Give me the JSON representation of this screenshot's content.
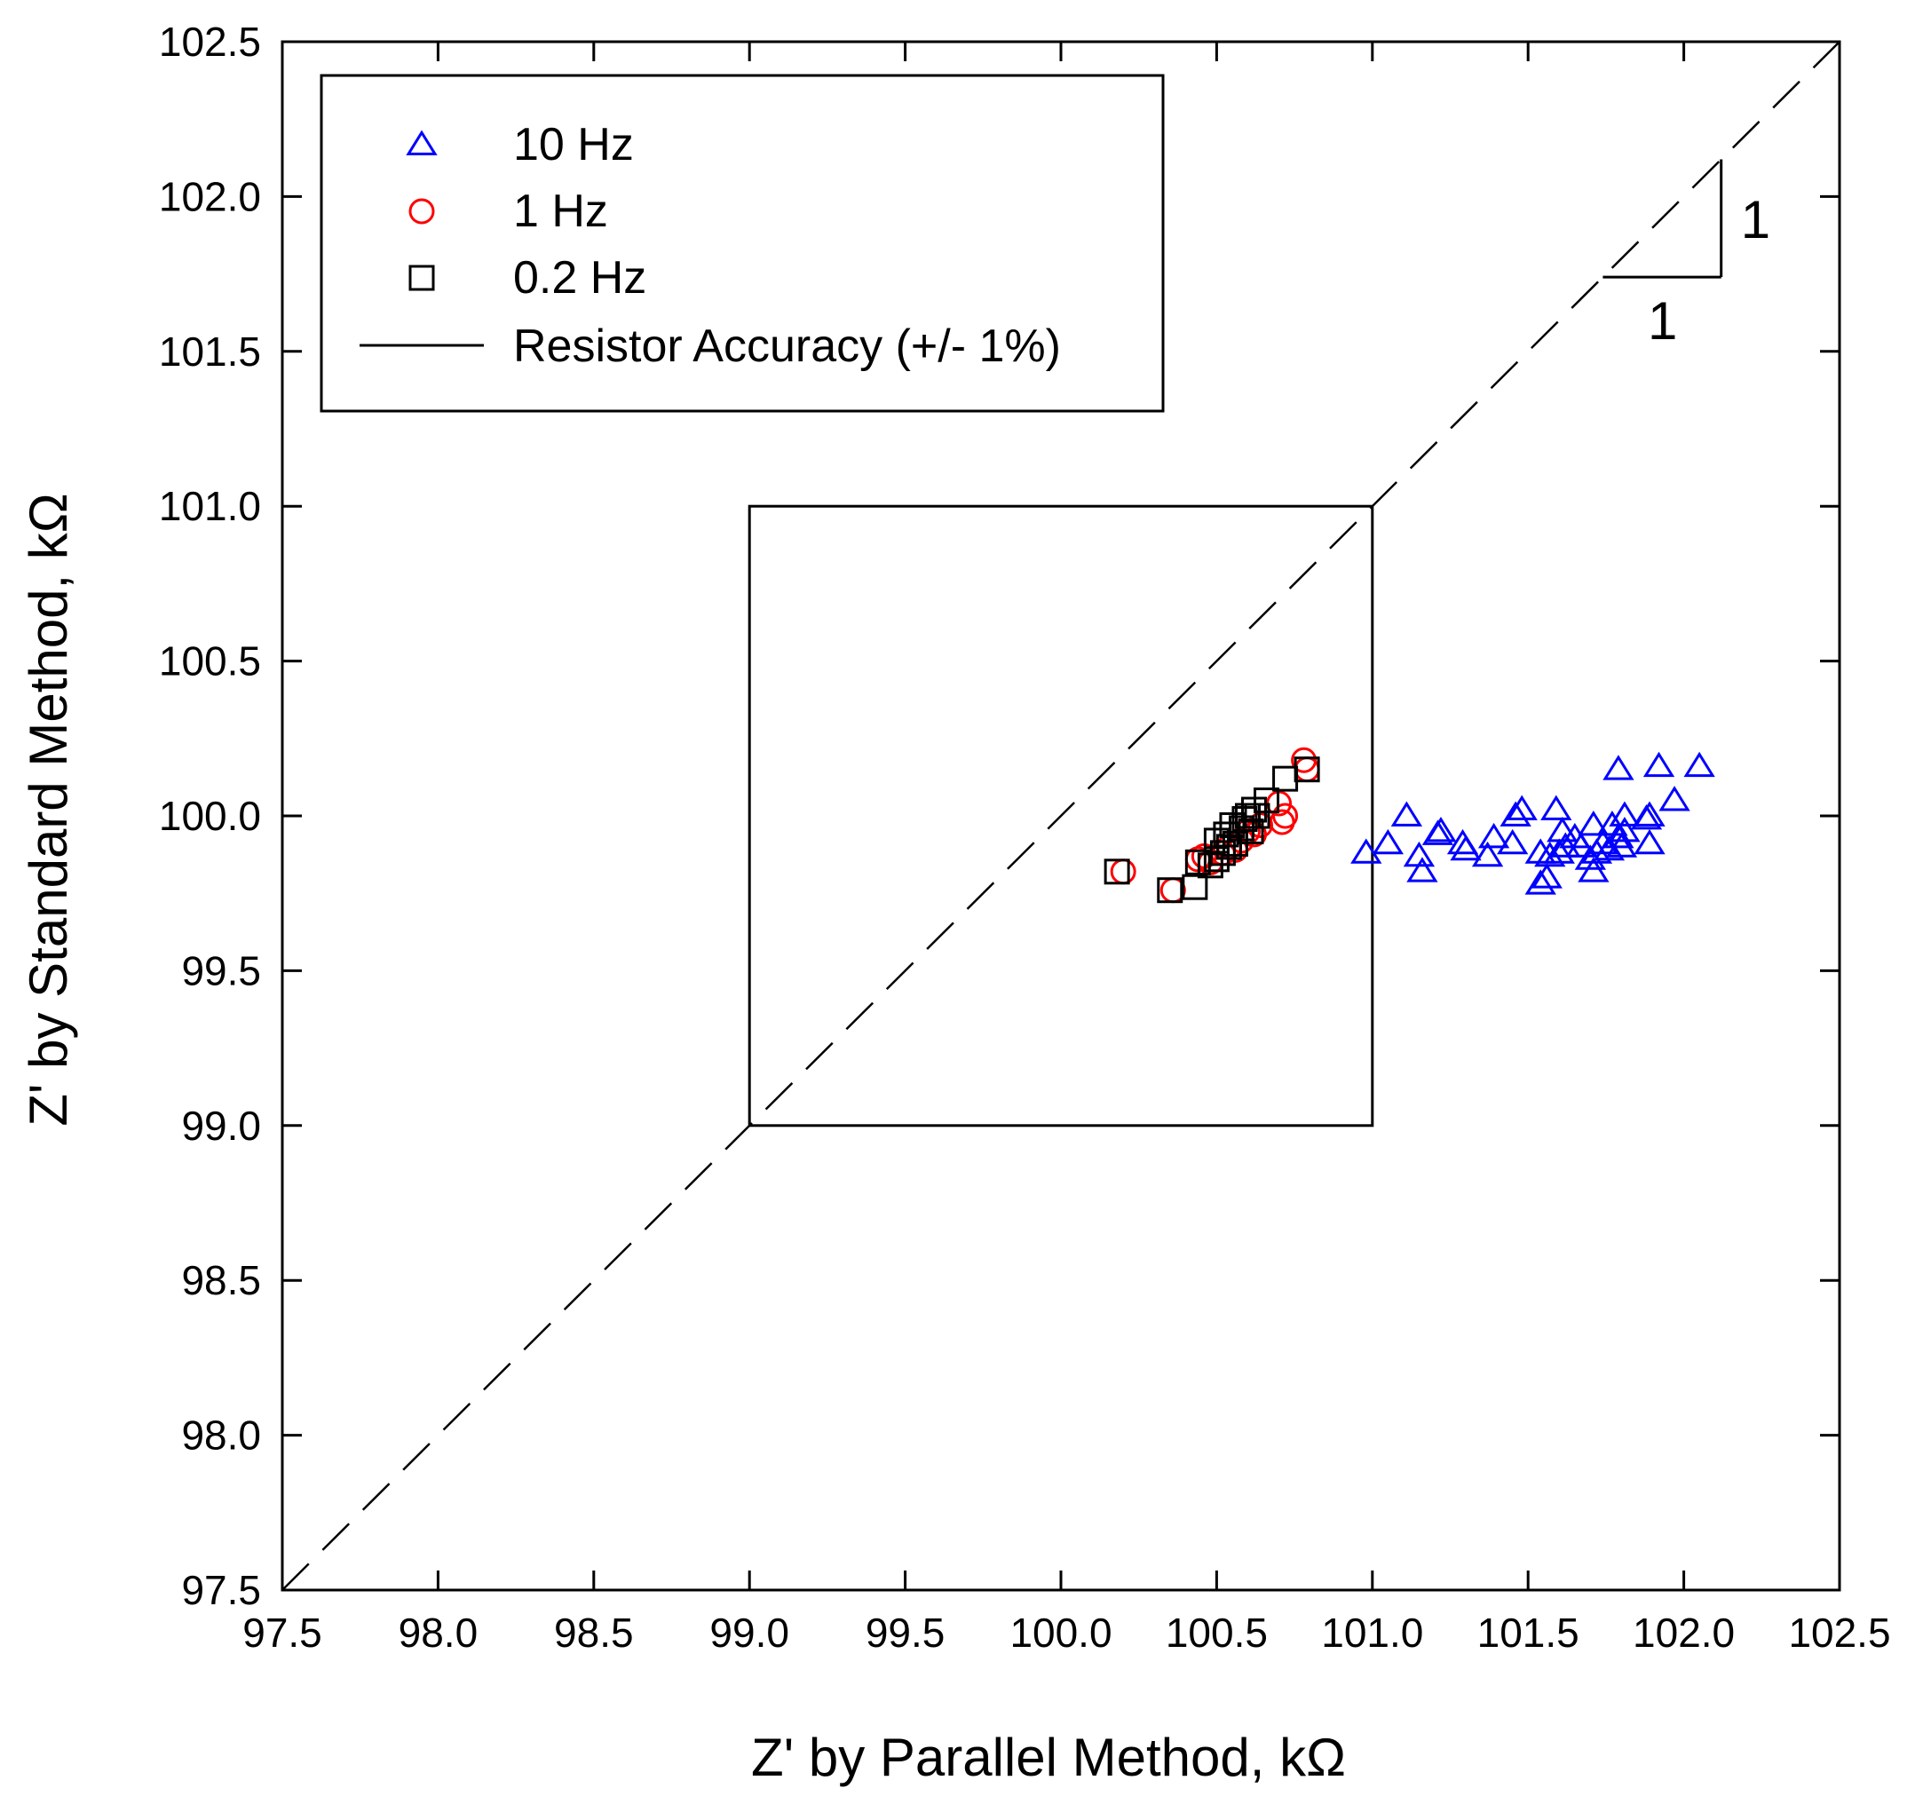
{
  "chart_data": {
    "type": "scatter",
    "xlabel": "Z' by Parallel Method, kΩ",
    "ylabel": "Z' by Standard Method, kΩ",
    "xlim": [
      97.5,
      102.5
    ],
    "ylim": [
      97.5,
      102.5
    ],
    "xticks": [
      "97.5",
      "98.0",
      "98.5",
      "99.0",
      "99.5",
      "100.0",
      "100.5",
      "101.0",
      "101.5",
      "102.0",
      "102.5"
    ],
    "yticks": [
      "97.5",
      "98.0",
      "98.5",
      "99.0",
      "99.5",
      "100.0",
      "100.5",
      "101.0",
      "101.5",
      "102.0",
      "102.5"
    ],
    "grid": false,
    "legend_position": "top-left",
    "series": [
      {
        "name": "10 Hz",
        "marker": "triangle",
        "color": "#0000ff",
        "points": [
          [
            100.98,
            99.88
          ],
          [
            101.05,
            99.91
          ],
          [
            101.11,
            100.0
          ],
          [
            101.15,
            99.87
          ],
          [
            101.16,
            99.82
          ],
          [
            101.21,
            99.94
          ],
          [
            101.22,
            99.95
          ],
          [
            101.29,
            99.91
          ],
          [
            101.3,
            99.89
          ],
          [
            101.37,
            99.87
          ],
          [
            101.39,
            99.93
          ],
          [
            101.45,
            99.91
          ],
          [
            101.46,
            100.0
          ],
          [
            101.48,
            100.02
          ],
          [
            101.54,
            99.88
          ],
          [
            101.54,
            99.78
          ],
          [
            101.56,
            99.8
          ],
          [
            101.57,
            99.87
          ],
          [
            101.59,
            100.02
          ],
          [
            101.6,
            99.88
          ],
          [
            101.61,
            99.95
          ],
          [
            101.62,
            99.9
          ],
          [
            101.65,
            99.93
          ],
          [
            101.67,
            99.9
          ],
          [
            101.7,
            99.86
          ],
          [
            101.71,
            99.82
          ],
          [
            101.71,
            99.97
          ],
          [
            101.72,
            99.88
          ],
          [
            101.74,
            99.91
          ],
          [
            101.76,
            99.89
          ],
          [
            101.77,
            99.97
          ],
          [
            101.79,
            100.15
          ],
          [
            101.79,
            99.93
          ],
          [
            101.8,
            99.9
          ],
          [
            101.81,
            99.95
          ],
          [
            101.81,
            100.0
          ],
          [
            101.88,
            99.99
          ],
          [
            101.89,
            100.0
          ],
          [
            101.89,
            99.91
          ],
          [
            101.92,
            100.16
          ],
          [
            101.97,
            100.05
          ],
          [
            102.05,
            100.16
          ]
        ]
      },
      {
        "name": "1 Hz",
        "marker": "circle",
        "color": "#ff0000",
        "points": [
          [
            100.2,
            99.82
          ],
          [
            100.36,
            99.76
          ],
          [
            100.44,
            99.86
          ],
          [
            100.46,
            99.87
          ],
          [
            100.48,
            99.85
          ],
          [
            100.52,
            99.88
          ],
          [
            100.54,
            99.9
          ],
          [
            100.56,
            99.89
          ],
          [
            100.58,
            99.92
          ],
          [
            100.6,
            99.95
          ],
          [
            100.62,
            99.94
          ],
          [
            100.64,
            99.97
          ],
          [
            100.7,
            100.04
          ],
          [
            100.71,
            99.98
          ],
          [
            100.72,
            100.0
          ],
          [
            100.78,
            100.18
          ],
          [
            100.79,
            100.15
          ]
        ]
      },
      {
        "name": "0.2 Hz",
        "marker": "square",
        "color": "#000000",
        "points": [
          [
            100.18,
            99.82
          ],
          [
            100.35,
            99.76
          ],
          [
            100.43,
            99.77
          ],
          [
            100.44,
            99.85
          ],
          [
            100.48,
            99.84
          ],
          [
            100.5,
            99.86
          ],
          [
            100.5,
            99.92
          ],
          [
            100.52,
            99.88
          ],
          [
            100.53,
            99.94
          ],
          [
            100.54,
            99.9
          ],
          [
            100.55,
            99.97
          ],
          [
            100.56,
            99.91
          ],
          [
            100.58,
            99.96
          ],
          [
            100.59,
            99.99
          ],
          [
            100.6,
            100.0
          ],
          [
            100.61,
            99.95
          ],
          [
            100.62,
            100.02
          ],
          [
            100.63,
            100.0
          ],
          [
            100.66,
            100.05
          ],
          [
            100.72,
            100.12
          ],
          [
            100.79,
            100.15
          ]
        ]
      }
    ],
    "reference_line": {
      "name": "Resistor Accuracy (+/- 1%)",
      "box": {
        "xmin": 99.0,
        "xmax": 101.0,
        "ymin": 99.0,
        "ymax": 101.0
      }
    },
    "identity_line": {
      "from": [
        97.5,
        97.5
      ],
      "to": [
        102.5,
        102.5
      ],
      "style": "dashed"
    },
    "slope_triangle": {
      "run_label": "1",
      "rise_label": "1",
      "x0": 101.74,
      "x1": 102.12,
      "y0": 101.74,
      "y1": 102.12
    }
  }
}
